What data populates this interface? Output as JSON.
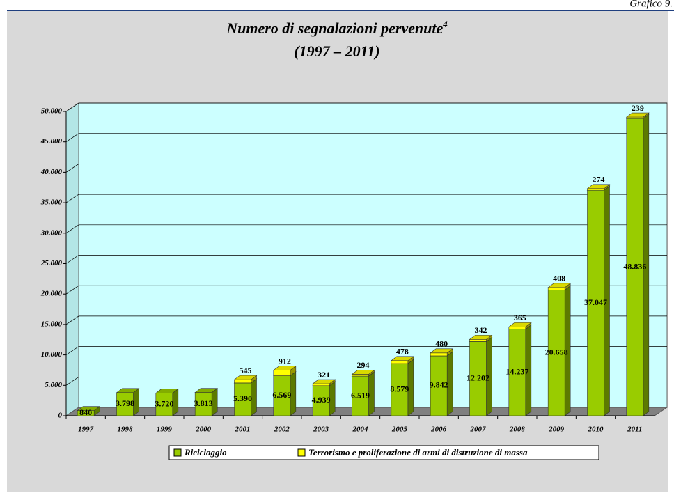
{
  "header": "Grafico 9.",
  "chart_data": {
    "type": "bar3d-stacked",
    "title": "Numero di segnalazioni pervenute",
    "title_footnote": "4",
    "subtitle": "(1997 – 2011)",
    "categories": [
      "1997",
      "1998",
      "1999",
      "2000",
      "2001",
      "2002",
      "2003",
      "2004",
      "2005",
      "2006",
      "2007",
      "2008",
      "2009",
      "2010",
      "2011"
    ],
    "series": [
      {
        "name": "Riciclaggio",
        "color": "#99cc00",
        "values": [
          840,
          3798,
          3720,
          3813,
          5390,
          6569,
          4939,
          6519,
          8579,
          9842,
          12202,
          14237,
          20658,
          37047,
          48836
        ],
        "value_labels": [
          "840",
          "3.798",
          "3.720",
          "3.813",
          "5.390",
          "6.569",
          "4.939",
          "6.519",
          "8.579",
          "9.842",
          "12.202",
          "14.237",
          "20.658",
          "37.047",
          "48.836"
        ]
      },
      {
        "name": "Terrorismo e proliferazione di armi di distruzione di massa",
        "color": "#ffff00",
        "values": [
          null,
          null,
          null,
          null,
          545,
          912,
          321,
          294,
          478,
          480,
          342,
          365,
          408,
          274,
          239
        ]
      }
    ],
    "ylim": [
      0,
      50000
    ],
    "yticks": [
      0,
      {
        "value": 5000,
        "label": "5.000"
      },
      {
        "value": 10000,
        "label": "10.000"
      },
      {
        "value": 15000,
        "label": "15.000"
      },
      {
        "value": 20000,
        "label": "20.000"
      },
      {
        "value": 25000,
        "label": "25.000"
      },
      {
        "value": 30000,
        "label": "30.000"
      },
      {
        "value": 35000,
        "label": "35.000"
      },
      {
        "value": 40000,
        "label": "40.000"
      },
      {
        "value": 45000,
        "label": "45.000"
      },
      {
        "value": 50000,
        "label": "50.000"
      }
    ],
    "grid": true,
    "legend": "bottom"
  }
}
